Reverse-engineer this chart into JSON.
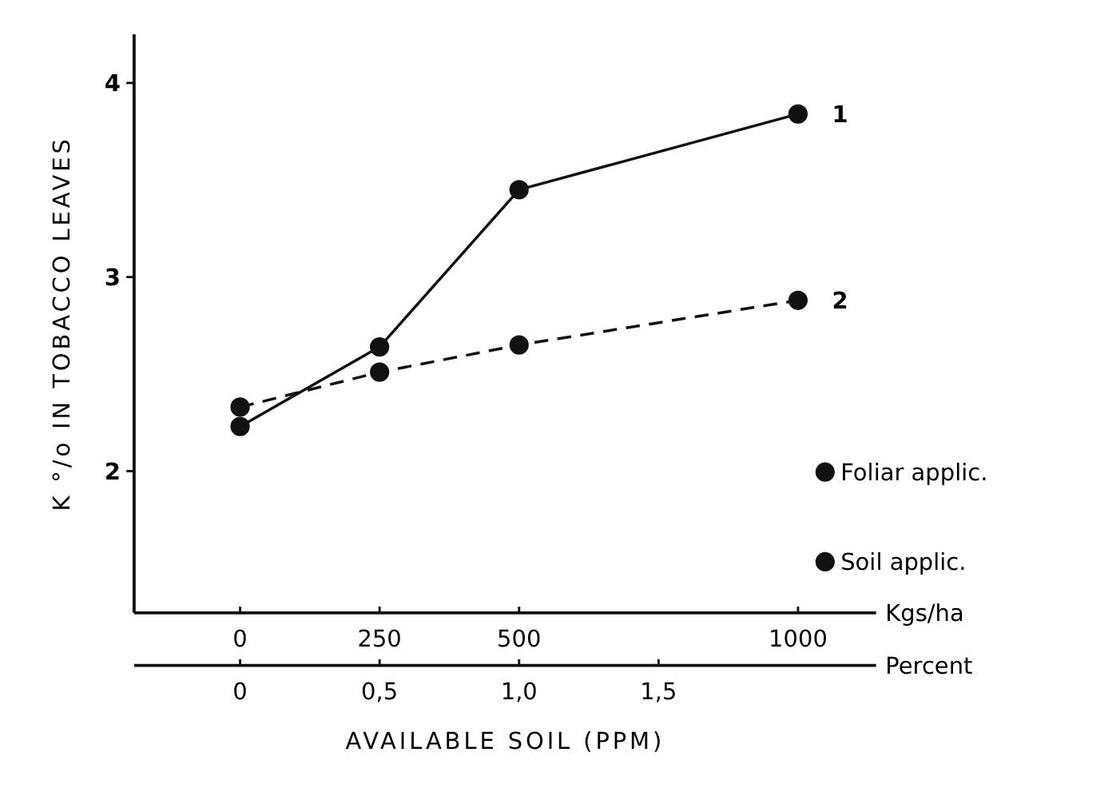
{
  "chart_data": {
    "type": "line",
    "xlabel": "AVAILABLE SOIL (PPM)",
    "ylabel": "K °/o IN TOBACCO LEAVES",
    "x": [
      0,
      250,
      500,
      1000
    ],
    "series": [
      {
        "name": "Foliar applic.",
        "color": "#111111",
        "line_style": "solid",
        "values": [
          2.23,
          2.64,
          3.45,
          3.84
        ]
      },
      {
        "name": "Soil applic.",
        "color": "#111111",
        "line_style": "dashed",
        "values": [
          2.33,
          2.51,
          2.65,
          2.88
        ]
      }
    ],
    "xlim": [
      -190,
      1140
    ],
    "xticks": [
      0,
      250,
      500,
      1000
    ],
    "x2label": "Percent",
    "x2lim": [
      -0.38,
      2.28
    ],
    "x2ticks": [
      {
        "value": 0,
        "label": "0"
      },
      {
        "value": 0.5,
        "label": "0,5"
      },
      {
        "value": 1.0,
        "label": "1,0"
      },
      {
        "value": 1.5,
        "label": "1,5"
      }
    ],
    "ylim": [
      1.27,
      4.25
    ],
    "yticks": [
      2,
      3,
      4
    ],
    "marker": "circle",
    "legend": "right",
    "grid": false,
    "annotations": [
      "Kgs/ha",
      {
        "text": "1",
        "x": 1000,
        "y": 3.84
      },
      {
        "text": "2",
        "x": 1000,
        "y": 2.88
      }
    ]
  }
}
